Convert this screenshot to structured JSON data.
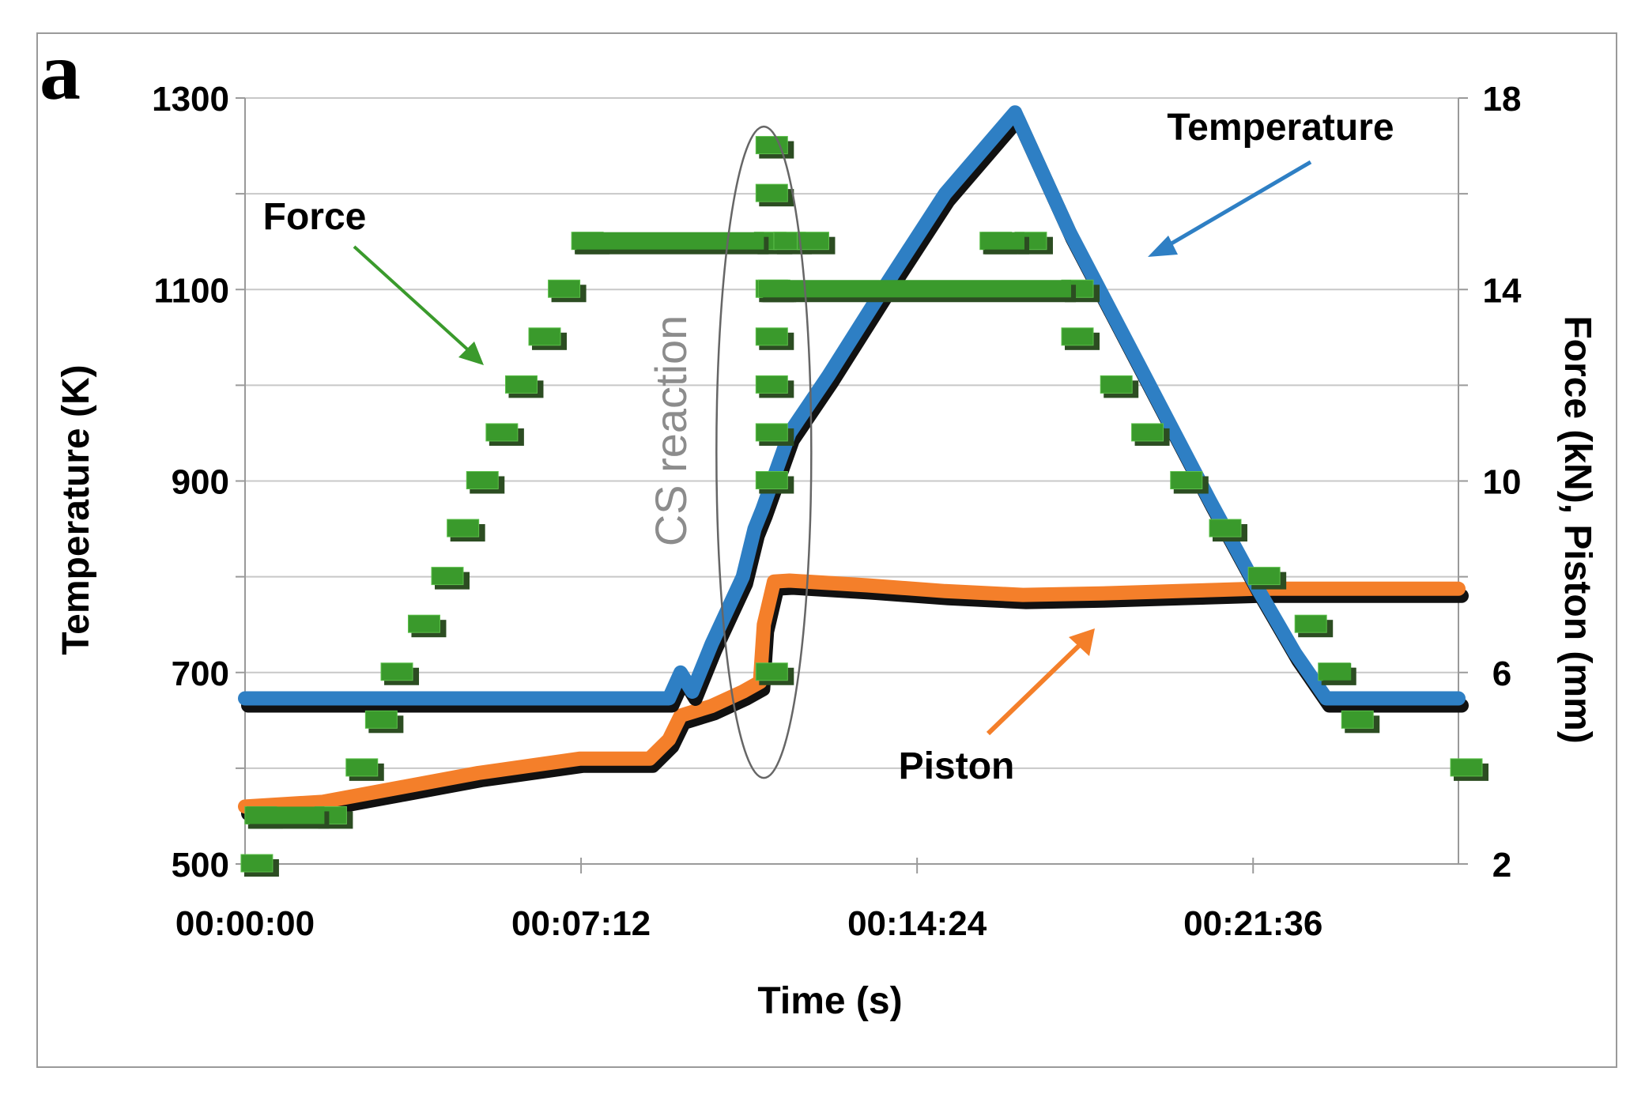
{
  "figure_label": "a",
  "chart_data": {
    "type": "line",
    "title": "",
    "xlabel": "Time (s)",
    "ylabel_left": "Temperature (K)",
    "ylabel_right": "Force (kN), Piston (mm)",
    "x_unit": "seconds",
    "xlim": [
      0,
      1560
    ],
    "ylim_left": [
      500,
      1300
    ],
    "ylim_right": [
      2,
      18
    ],
    "x_ticks": [
      {
        "value": 0,
        "label": "00:00:00"
      },
      {
        "value": 432,
        "label": "00:07:12"
      },
      {
        "value": 864,
        "label": "00:14:24"
      },
      {
        "value": 1296,
        "label": "00:21:36"
      }
    ],
    "y_left_ticks": [
      {
        "value": 500,
        "label": "500"
      },
      {
        "value": 700,
        "label": "700"
      },
      {
        "value": 900,
        "label": "900"
      },
      {
        "value": 1100,
        "label": "1100"
      },
      {
        "value": 1300,
        "label": "1300"
      }
    ],
    "y_right_ticks": [
      {
        "value": 2,
        "label": "2"
      },
      {
        "value": 6,
        "label": "6"
      },
      {
        "value": 10,
        "label": "10"
      },
      {
        "value": 14,
        "label": "14"
      },
      {
        "value": 18,
        "label": "18"
      }
    ],
    "grid": true,
    "series": [
      {
        "name": "Temperature",
        "axis": "left",
        "color": "#2e7fc4",
        "points": [
          [
            0,
            673
          ],
          [
            545,
            673
          ],
          [
            560,
            700
          ],
          [
            575,
            680
          ],
          [
            600,
            730
          ],
          [
            640,
            800
          ],
          [
            655,
            850
          ],
          [
            665,
            870
          ],
          [
            700,
            950
          ],
          [
            750,
            1010
          ],
          [
            820,
            1100
          ],
          [
            900,
            1200
          ],
          [
            990,
            1285
          ],
          [
            1060,
            1160
          ],
          [
            1150,
            1020
          ],
          [
            1240,
            880
          ],
          [
            1300,
            790
          ],
          [
            1350,
            720
          ],
          [
            1390,
            673
          ],
          [
            1560,
            673
          ]
        ]
      },
      {
        "name": "Piston",
        "axis": "right",
        "color": "#f47f2a",
        "points": [
          [
            0,
            3.2
          ],
          [
            100,
            3.3
          ],
          [
            200,
            3.6
          ],
          [
            300,
            3.9
          ],
          [
            430,
            4.2
          ],
          [
            520,
            4.2
          ],
          [
            545,
            4.6
          ],
          [
            560,
            5.1
          ],
          [
            600,
            5.3
          ],
          [
            640,
            5.6
          ],
          [
            662,
            5.8
          ],
          [
            667,
            7.0
          ],
          [
            680,
            7.9
          ],
          [
            700,
            7.92
          ],
          [
            800,
            7.82
          ],
          [
            900,
            7.7
          ],
          [
            1000,
            7.62
          ],
          [
            1100,
            7.65
          ],
          [
            1200,
            7.7
          ],
          [
            1300,
            7.75
          ],
          [
            1560,
            7.75
          ]
        ]
      },
      {
        "name": "Force",
        "axis": "right",
        "color": "#3a9a2c",
        "points": [
          [
            5,
            2.0
          ],
          [
            10,
            3.0
          ],
          [
            100,
            3.0
          ],
          [
            140,
            4.0
          ],
          [
            165,
            5.0
          ],
          [
            185,
            6.0
          ],
          [
            220,
            7.0
          ],
          [
            250,
            8.0
          ],
          [
            270,
            9.0
          ],
          [
            295,
            10.0
          ],
          [
            320,
            11.0
          ],
          [
            345,
            12.0
          ],
          [
            375,
            13.0
          ],
          [
            400,
            14.0
          ],
          [
            430,
            15.0
          ],
          [
            665,
            15.0
          ],
          [
            667,
            6.0
          ],
          [
            667,
            10.0
          ],
          [
            667,
            11.0
          ],
          [
            667,
            12.0
          ],
          [
            667,
            13.0
          ],
          [
            667,
            14.0
          ],
          [
            667,
            16.0
          ],
          [
            667,
            17.0
          ],
          [
            690,
            15.0
          ],
          [
            720,
            15.0
          ],
          [
            670,
            14.0
          ],
          [
            1060,
            14.0
          ],
          [
            955,
            15.0
          ],
          [
            1000,
            15.0
          ],
          [
            1060,
            13.0
          ],
          [
            1110,
            12.0
          ],
          [
            1150,
            11.0
          ],
          [
            1200,
            10.0
          ],
          [
            1250,
            9.0
          ],
          [
            1300,
            8.0
          ],
          [
            1360,
            7.0
          ],
          [
            1390,
            6.0
          ],
          [
            1420,
            5.0
          ],
          [
            1560,
            4.0
          ]
        ]
      }
    ],
    "annotations": [
      {
        "text": "Force"
      },
      {
        "text": "Temperature"
      },
      {
        "text": "Piston"
      },
      {
        "text": "CS reaction"
      }
    ]
  }
}
